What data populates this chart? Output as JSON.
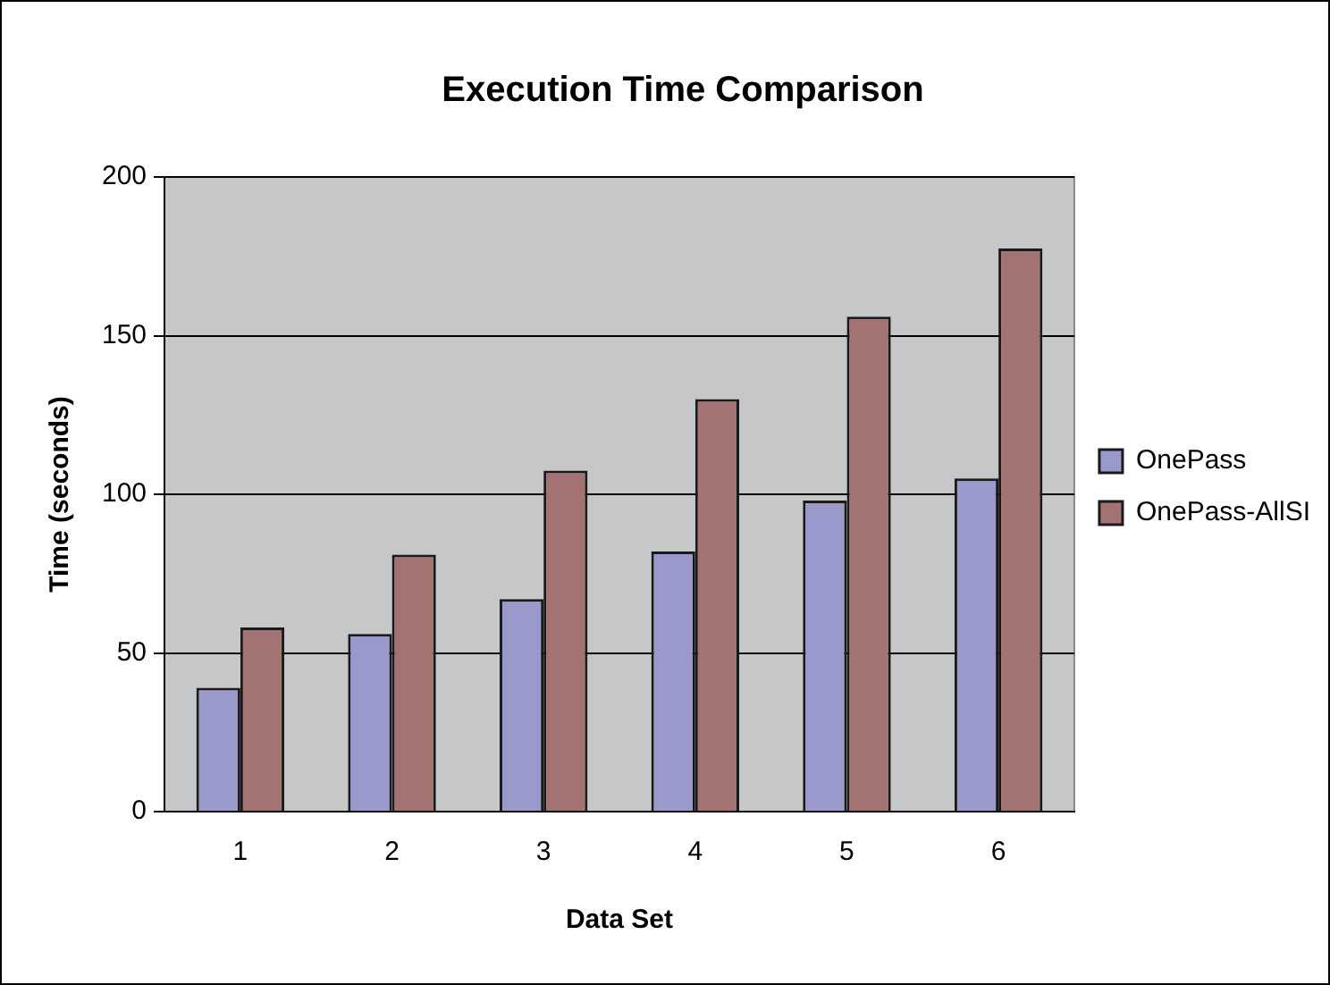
{
  "chart_data": {
    "type": "bar",
    "title": "Execution Time Comparison",
    "xlabel": "Data Set",
    "ylabel": "Time (seconds)",
    "categories": [
      "1",
      "2",
      "3",
      "4",
      "5",
      "6"
    ],
    "series": [
      {
        "name": "OnePass",
        "color": "#9999cc",
        "values": [
          39,
          56,
          67,
          82,
          98,
          105
        ]
      },
      {
        "name": "OnePass-AllSI",
        "color": "#a37373",
        "values": [
          58,
          81,
          107.5,
          130,
          156,
          177.5
        ]
      }
    ],
    "ylim": [
      0,
      200
    ],
    "yticks": [
      0,
      50,
      100,
      150,
      200
    ],
    "grid": "y",
    "legend": "right"
  }
}
